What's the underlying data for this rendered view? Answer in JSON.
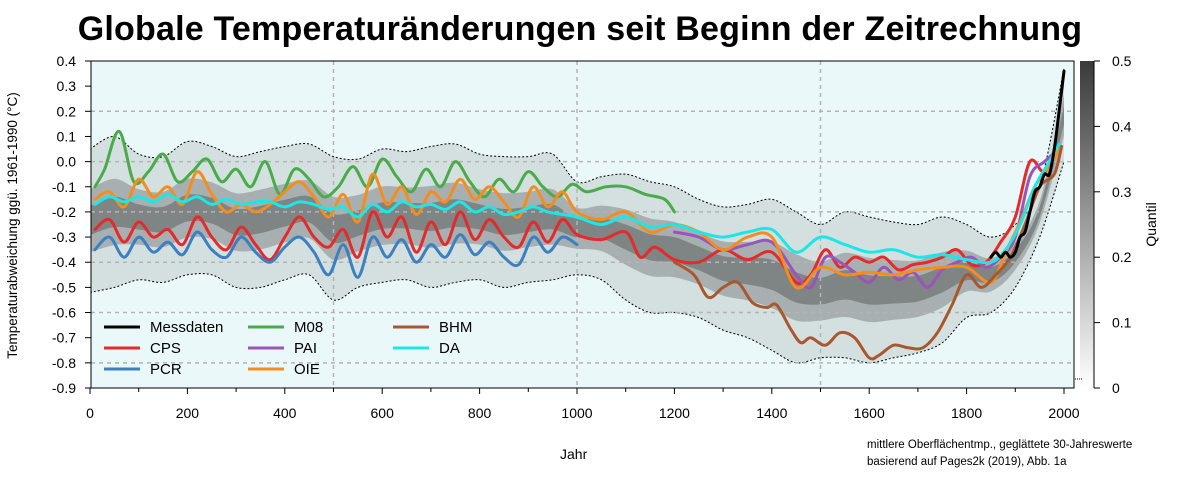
{
  "title": "Globale Temperaturänderungen seit Beginn der Zeitrechnung",
  "credit": {
    "line1": "mittlere Oberflächentmp., geglättete 30-Jahreswerte",
    "line2": "basierend auf Pages2k (2019), Abb. 1a"
  },
  "colors": {
    "background": "#eaf8f9",
    "Messdaten": "#000000",
    "CPS": "#e32b2b",
    "PCR": "#3d80c0",
    "M08": "#4aab4a",
    "PAI": "#9955b8",
    "OIE": "#f58d1e",
    "BHM": "#a8582f",
    "DA": "#1ee6e6",
    "band": "#555555",
    "grid": "#b4b4b4"
  },
  "chart_data": {
    "type": "line",
    "title": "Globale Temperaturänderungen seit Beginn der Zeitrechnung",
    "xlabel": "Jahr",
    "ylabel": "Temperaturabweichung ggü. 1961-1990 (°C)",
    "xlim": [
      0,
      2000
    ],
    "ylim": [
      -0.9,
      0.4
    ],
    "xticks": [
      "0",
      "200",
      "400",
      "600",
      "800",
      "1000",
      "1200",
      "1400",
      "1600",
      "1800",
      "2000"
    ],
    "yticks": [
      "0.4",
      "0.3",
      "0.2",
      "0.1",
      "0.0",
      "-0.1",
      "-0.2",
      "-0.3",
      "-0.4",
      "-0.5",
      "-0.6",
      "-0.7",
      "-0.8",
      "-0.9"
    ],
    "grid": true,
    "legend_position": "bottom-left",
    "colorbar": {
      "label": "Quantil",
      "range": [
        0,
        0.5
      ],
      "ticks": [
        "0.5",
        "0.4",
        "0.3",
        "0.2",
        "0.1",
        "0"
      ]
    },
    "quantile_band": {
      "x": [
        0,
        50,
        100,
        150,
        200,
        250,
        300,
        350,
        400,
        450,
        500,
        550,
        600,
        650,
        700,
        750,
        800,
        850,
        900,
        950,
        1000,
        1050,
        1100,
        1150,
        1200,
        1250,
        1300,
        1350,
        1400,
        1450,
        1500,
        1550,
        1600,
        1650,
        1700,
        1750,
        1800,
        1850,
        1900,
        1950,
        2000
      ],
      "upper": [
        0.05,
        0.1,
        0.03,
        0.02,
        0.08,
        0.06,
        0.02,
        0.04,
        0.06,
        0.07,
        0.02,
        0.01,
        0.05,
        0.04,
        0.06,
        0.07,
        0.03,
        0.02,
        0.02,
        0.03,
        -0.08,
        -0.06,
        -0.05,
        -0.08,
        -0.1,
        -0.15,
        -0.18,
        -0.17,
        -0.15,
        -0.2,
        -0.25,
        -0.2,
        -0.22,
        -0.24,
        -0.25,
        -0.22,
        -0.25,
        -0.3,
        -0.25,
        -0.1,
        0.37
      ],
      "lower": [
        -0.52,
        -0.5,
        -0.47,
        -0.48,
        -0.45,
        -0.45,
        -0.5,
        -0.5,
        -0.47,
        -0.45,
        -0.55,
        -0.5,
        -0.48,
        -0.47,
        -0.5,
        -0.48,
        -0.47,
        -0.5,
        -0.48,
        -0.47,
        -0.45,
        -0.47,
        -0.55,
        -0.6,
        -0.6,
        -0.62,
        -0.67,
        -0.7,
        -0.75,
        -0.8,
        -0.78,
        -0.78,
        -0.8,
        -0.78,
        -0.76,
        -0.72,
        -0.62,
        -0.6,
        -0.5,
        -0.3,
        0.0
      ]
    },
    "series": [
      {
        "name": "CPS",
        "x": [
          10,
          40,
          70,
          100,
          130,
          160,
          190,
          220,
          250,
          280,
          310,
          340,
          370,
          400,
          430,
          460,
          490,
          520,
          550,
          580,
          610,
          640,
          670,
          700,
          730,
          760,
          790,
          820,
          850,
          880,
          910,
          940,
          970,
          1000,
          1050,
          1100,
          1130,
          1160,
          1200,
          1250,
          1300,
          1350,
          1400,
          1450,
          1480,
          1510,
          1540,
          1570,
          1600,
          1630,
          1660,
          1690,
          1720,
          1750,
          1780,
          1810,
          1840,
          1870,
          1900,
          1930,
          1960,
          1990
        ],
        "y": [
          -0.27,
          -0.23,
          -0.32,
          -0.24,
          -0.3,
          -0.27,
          -0.33,
          -0.22,
          -0.3,
          -0.35,
          -0.26,
          -0.33,
          -0.39,
          -0.3,
          -0.22,
          -0.3,
          -0.34,
          -0.27,
          -0.38,
          -0.2,
          -0.3,
          -0.22,
          -0.36,
          -0.24,
          -0.33,
          -0.2,
          -0.31,
          -0.23,
          -0.3,
          -0.34,
          -0.24,
          -0.32,
          -0.23,
          -0.29,
          -0.31,
          -0.28,
          -0.38,
          -0.34,
          -0.39,
          -0.4,
          -0.35,
          -0.39,
          -0.36,
          -0.48,
          -0.45,
          -0.35,
          -0.42,
          -0.38,
          -0.4,
          -0.38,
          -0.43,
          -0.41,
          -0.4,
          -0.38,
          -0.35,
          -0.41,
          -0.4,
          -0.32,
          -0.22,
          0.0,
          -0.04,
          0.07
        ]
      },
      {
        "name": "PCR",
        "x": [
          10,
          40,
          70,
          100,
          130,
          160,
          190,
          220,
          250,
          280,
          310,
          340,
          370,
          400,
          430,
          460,
          490,
          520,
          550,
          580,
          610,
          640,
          670,
          700,
          730,
          760,
          790,
          820,
          850,
          880,
          910,
          940,
          970,
          1000
        ],
        "y": [
          -0.35,
          -0.3,
          -0.38,
          -0.3,
          -0.36,
          -0.32,
          -0.37,
          -0.28,
          -0.35,
          -0.38,
          -0.3,
          -0.36,
          -0.4,
          -0.34,
          -0.3,
          -0.36,
          -0.45,
          -0.33,
          -0.46,
          -0.3,
          -0.38,
          -0.31,
          -0.4,
          -0.33,
          -0.38,
          -0.29,
          -0.37,
          -0.32,
          -0.38,
          -0.41,
          -0.3,
          -0.36,
          -0.3,
          -0.33
        ]
      },
      {
        "name": "M08",
        "x": [
          10,
          30,
          60,
          90,
          120,
          150,
          180,
          210,
          240,
          270,
          300,
          330,
          360,
          390,
          420,
          450,
          480,
          510,
          540,
          570,
          600,
          630,
          660,
          690,
          720,
          750,
          780,
          810,
          840,
          870,
          900,
          930,
          960,
          990,
          1020,
          1060,
          1100,
          1140,
          1180,
          1200
        ],
        "y": [
          -0.1,
          -0.03,
          0.12,
          -0.08,
          -0.04,
          0.03,
          -0.08,
          -0.04,
          0.01,
          -0.08,
          -0.03,
          -0.1,
          0.0,
          -0.13,
          -0.03,
          -0.07,
          -0.14,
          -0.1,
          -0.02,
          -0.1,
          0.01,
          -0.06,
          -0.12,
          -0.03,
          -0.1,
          0.0,
          -0.08,
          -0.14,
          -0.07,
          -0.12,
          -0.04,
          -0.1,
          -0.14,
          -0.09,
          -0.12,
          -0.1,
          -0.1,
          -0.13,
          -0.15,
          -0.2
        ]
      },
      {
        "name": "PAI",
        "x": [
          1200,
          1250,
          1300,
          1350,
          1400,
          1450,
          1480,
          1510,
          1540,
          1570,
          1600,
          1630,
          1660,
          1690,
          1720,
          1750,
          1780,
          1810,
          1840,
          1870,
          1900,
          1930,
          1960,
          1990
        ],
        "y": [
          -0.28,
          -0.3,
          -0.35,
          -0.33,
          -0.32,
          -0.45,
          -0.5,
          -0.38,
          -0.4,
          -0.44,
          -0.48,
          -0.42,
          -0.47,
          -0.44,
          -0.5,
          -0.43,
          -0.4,
          -0.38,
          -0.42,
          -0.38,
          -0.3,
          -0.06,
          0.0,
          0.05
        ]
      },
      {
        "name": "OIE",
        "x": [
          10,
          40,
          70,
          100,
          130,
          160,
          190,
          220,
          250,
          280,
          310,
          340,
          370,
          400,
          430,
          460,
          490,
          520,
          550,
          580,
          610,
          640,
          670,
          700,
          730,
          760,
          790,
          820,
          850,
          880,
          910,
          940,
          970,
          1000,
          1050,
          1100,
          1150,
          1200,
          1250,
          1300,
          1350,
          1400,
          1450,
          1500,
          1550,
          1600,
          1650,
          1700,
          1750,
          1800,
          1850,
          1880,
          1910,
          1940,
          1970,
          1990
        ],
        "y": [
          -0.15,
          -0.12,
          -0.18,
          -0.07,
          -0.14,
          -0.1,
          -0.17,
          -0.04,
          -0.13,
          -0.2,
          -0.17,
          -0.2,
          -0.17,
          -0.12,
          -0.08,
          -0.14,
          -0.22,
          -0.13,
          -0.24,
          -0.05,
          -0.17,
          -0.1,
          -0.21,
          -0.12,
          -0.16,
          -0.07,
          -0.15,
          -0.1,
          -0.16,
          -0.22,
          -0.1,
          -0.18,
          -0.12,
          -0.2,
          -0.23,
          -0.2,
          -0.28,
          -0.25,
          -0.28,
          -0.35,
          -0.3,
          -0.3,
          -0.5,
          -0.42,
          -0.45,
          -0.44,
          -0.45,
          -0.43,
          -0.42,
          -0.42,
          -0.48,
          -0.36,
          -0.24,
          -0.1,
          -0.02,
          0.05
        ]
      },
      {
        "name": "BHM",
        "x": [
          1200,
          1240,
          1270,
          1300,
          1330,
          1360,
          1390,
          1410,
          1440,
          1460,
          1480,
          1510,
          1540,
          1570,
          1600,
          1620,
          1650,
          1680,
          1710,
          1740,
          1770,
          1800,
          1830,
          1860,
          1890,
          1920,
          1950,
          1980,
          1995
        ],
        "y": [
          -0.4,
          -0.45,
          -0.54,
          -0.5,
          -0.48,
          -0.56,
          -0.58,
          -0.57,
          -0.67,
          -0.72,
          -0.7,
          -0.73,
          -0.68,
          -0.7,
          -0.78,
          -0.77,
          -0.73,
          -0.74,
          -0.74,
          -0.68,
          -0.57,
          -0.45,
          -0.5,
          -0.45,
          -0.38,
          -0.25,
          -0.1,
          -0.05,
          0.06
        ]
      },
      {
        "name": "DA",
        "x": [
          10,
          40,
          70,
          100,
          130,
          160,
          190,
          220,
          250,
          280,
          310,
          340,
          370,
          400,
          430,
          460,
          490,
          520,
          550,
          580,
          610,
          640,
          670,
          700,
          730,
          760,
          790,
          820,
          850,
          880,
          910,
          940,
          970,
          1000,
          1050,
          1100,
          1150,
          1200,
          1250,
          1300,
          1350,
          1400,
          1450,
          1500,
          1550,
          1600,
          1650,
          1700,
          1750,
          1800,
          1850,
          1880,
          1910,
          1940,
          1970,
          1990
        ],
        "y": [
          -0.17,
          -0.14,
          -0.16,
          -0.14,
          -0.16,
          -0.13,
          -0.16,
          -0.14,
          -0.17,
          -0.15,
          -0.17,
          -0.16,
          -0.16,
          -0.18,
          -0.16,
          -0.17,
          -0.19,
          -0.18,
          -0.22,
          -0.17,
          -0.2,
          -0.16,
          -0.18,
          -0.17,
          -0.19,
          -0.16,
          -0.2,
          -0.18,
          -0.21,
          -0.2,
          -0.18,
          -0.2,
          -0.21,
          -0.22,
          -0.25,
          -0.22,
          -0.26,
          -0.25,
          -0.28,
          -0.3,
          -0.28,
          -0.27,
          -0.36,
          -0.3,
          -0.33,
          -0.36,
          -0.35,
          -0.38,
          -0.37,
          -0.39,
          -0.4,
          -0.35,
          -0.25,
          -0.1,
          0.0,
          0.07
        ]
      },
      {
        "name": "Messdaten",
        "x": [
          1850,
          1860,
          1870,
          1880,
          1890,
          1900,
          1910,
          1920,
          1930,
          1940,
          1950,
          1960,
          1970,
          1980,
          1990,
          2000
        ],
        "y": [
          -0.38,
          -0.36,
          -0.38,
          -0.36,
          -0.38,
          -0.36,
          -0.3,
          -0.28,
          -0.2,
          -0.12,
          -0.1,
          -0.05,
          -0.05,
          0.05,
          0.2,
          0.36
        ]
      }
    ]
  }
}
